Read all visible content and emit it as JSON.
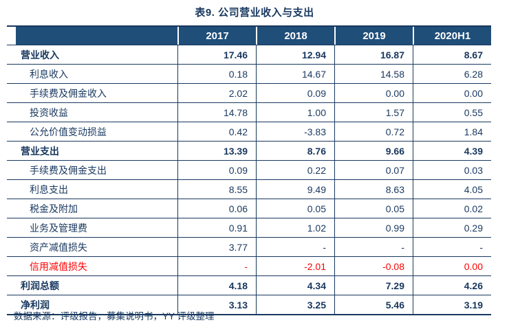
{
  "title": "表9. 公司营业收入与支出",
  "table": {
    "columns": [
      "2017",
      "2018",
      "2019",
      "2020H1"
    ],
    "rows": [
      {
        "label": "营业收入",
        "values": [
          "17.46",
          "12.94",
          "16.87",
          "8.67"
        ],
        "style": "section"
      },
      {
        "label": "利息收入",
        "values": [
          "0.18",
          "14.67",
          "14.58",
          "6.28"
        ],
        "style": "sub"
      },
      {
        "label": "手续费及佣金收入",
        "values": [
          "2.02",
          "0.09",
          "0.00",
          "0.00"
        ],
        "style": "sub"
      },
      {
        "label": "投资收益",
        "values": [
          "14.78",
          "1.00",
          "1.57",
          "0.55"
        ],
        "style": "sub"
      },
      {
        "label": "公允价值变动损益",
        "values": [
          "0.42",
          "-3.83",
          "0.72",
          "1.84"
        ],
        "style": "sub"
      },
      {
        "label": "营业支出",
        "values": [
          "13.39",
          "8.76",
          "9.66",
          "4.39"
        ],
        "style": "section"
      },
      {
        "label": "手续费及佣金支出",
        "values": [
          "0.09",
          "0.22",
          "0.07",
          "0.03"
        ],
        "style": "sub"
      },
      {
        "label": "利息支出",
        "values": [
          "8.55",
          "9.49",
          "8.63",
          "4.05"
        ],
        "style": "sub"
      },
      {
        "label": "税金及附加",
        "values": [
          "0.06",
          "0.05",
          "0.05",
          "0.02"
        ],
        "style": "sub"
      },
      {
        "label": "业务及管理费",
        "values": [
          "0.91",
          "1.02",
          "0.99",
          "0.29"
        ],
        "style": "sub"
      },
      {
        "label": "资产减值损失",
        "values": [
          "3.77",
          "-",
          "-",
          "-"
        ],
        "style": "sub"
      },
      {
        "label": "信用减值损失",
        "values": [
          "-",
          "-2.01",
          "-0.08",
          "0.00"
        ],
        "style": "sub red"
      },
      {
        "label": "利润总额",
        "values": [
          "4.18",
          "4.34",
          "7.29",
          "4.26"
        ],
        "style": "section"
      },
      {
        "label": "净利润",
        "values": [
          "3.13",
          "3.25",
          "5.46",
          "3.19"
        ],
        "style": "section"
      }
    ]
  },
  "footer": "数据来源：评级报告，募集说明书，YY 评级整理",
  "colors": {
    "header_bg": "#1F4E79",
    "header_text": "#FFFFFF",
    "body_text": "#17375E",
    "border": "#17375E",
    "highlight_red": "#FF0000"
  }
}
